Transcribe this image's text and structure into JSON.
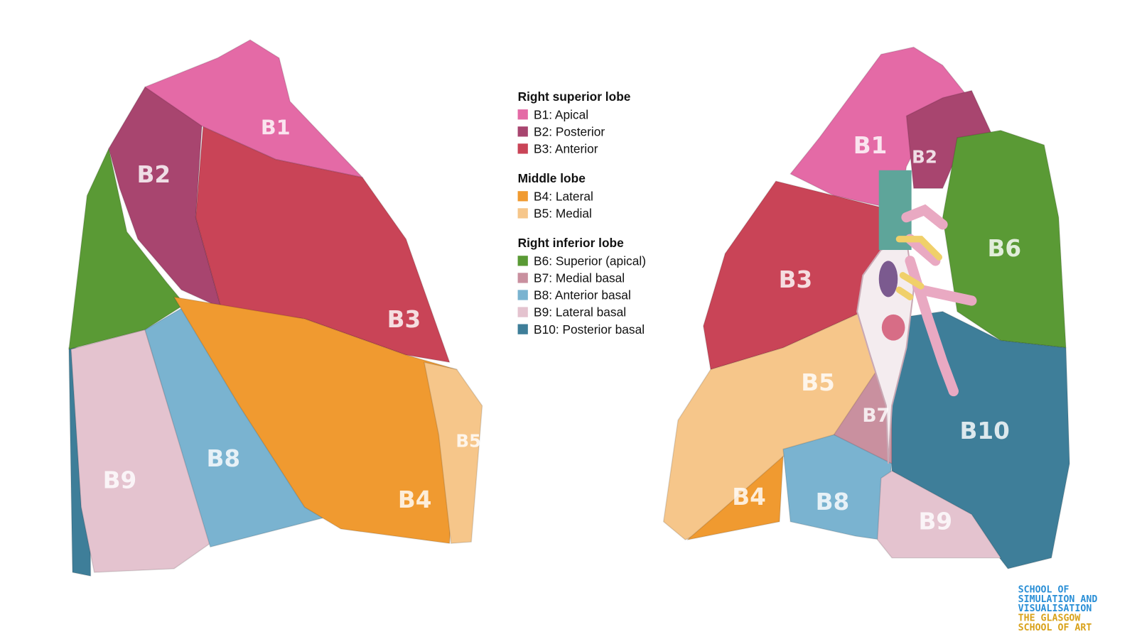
{
  "legend": [
    {
      "title": "Right superior lobe",
      "items": [
        {
          "label": "B1: Apical",
          "color": "#e46aa6"
        },
        {
          "label": "B2: Posterior",
          "color": "#a8456f"
        },
        {
          "label": "B3: Anterior",
          "color": "#c94457"
        }
      ]
    },
    {
      "title": "Middle lobe",
      "items": [
        {
          "label": "B4: Lateral",
          "color": "#f09a30"
        },
        {
          "label": "B5: Medial",
          "color": "#f6c68a"
        }
      ]
    },
    {
      "title": "Right inferior lobe",
      "items": [
        {
          "label": "B6: Superior (apical)",
          "color": "#5a9a35"
        },
        {
          "label": "B7: Medial basal",
          "color": "#c9909f"
        },
        {
          "label": "B8: Anterior basal",
          "color": "#7ab3d0"
        },
        {
          "label": "B9: Lateral basal",
          "color": "#e4c3cf"
        },
        {
          "label": "B10: Posterior basal",
          "color": "#3e7e99"
        }
      ]
    }
  ],
  "lateral_view": {
    "labels": [
      "B1",
      "B2",
      "B3",
      "B4",
      "B5",
      "B8",
      "B9"
    ]
  },
  "medial_view": {
    "labels": [
      "B1",
      "B2",
      "B3",
      "B4",
      "B5",
      "B6",
      "B7",
      "B8",
      "B9",
      "B10"
    ]
  },
  "logo": {
    "lines": [
      "SCHOOL OF",
      "SIMULATION AND",
      "VISUALISATION",
      "THE GLASGOW",
      "SCHOOL OF ART"
    ]
  }
}
